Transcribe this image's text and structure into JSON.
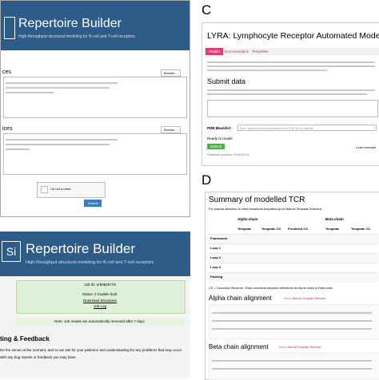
{
  "panel_labels": [
    "C",
    "D"
  ],
  "builder_form": {
    "title": "Repertoire Builder",
    "subtitle": "High-throughput structural modeling for B-cell and T-cell receptors",
    "heavy_label": "ces",
    "light_label": "ices",
    "browse": "Browse...",
    "captcha": "I'm not a robot",
    "submit": "Submit"
  },
  "builder_result": {
    "logo": "Si",
    "title": "Repertoire Builder",
    "subtitle": "High-throughput structural modeling for B-cell and T-cell receptors",
    "job_id": "Job ID: erb0825778",
    "status": "Status: 2 models built.",
    "download": "Download Structures",
    "job_log": "Job Log",
    "note": "Note: Job results are automatically removed after 7 days.",
    "section": "ting & Feedback",
    "text": "lve the server at the moment, and so we ask for your patience and understanding for any problems that may occur",
    "text2": "with any bug reports or feedback you may have."
  },
  "lyra": {
    "title": "LYRA: Lymphocyte Receptor Automated Modelling",
    "tabs": [
      "Predict",
      "Documentation",
      "Templates"
    ],
    "submit_heading": "Submit data",
    "blacklist_label": "PDB Blacklist:",
    "blacklist_placeholder": "Enter optional comma separated list of PDB IDs to blacklist",
    "ready": "Ready to model",
    "submit": "Submit",
    "load_example": "Load example",
    "updated": "Database updated: 2016-04-14"
  },
  "summary": {
    "title": "Summary of modelled TCR",
    "manual_note": "For manual selection of other framework templates go to Manual Template Selection",
    "alpha_header": "Alpha chain",
    "beta_header": "Beta chain",
    "columns": [
      "Template",
      "Template CS",
      "Predicted CS",
      "Template",
      "Template CS"
    ],
    "rows": [
      "Framework",
      "Loop 1",
      "Loop 2",
      "Loop 3",
      "Packing"
    ],
    "cs_note": "CS = Canonical Structure. Show canonical structure definitions for Alpha chain or Beta chain",
    "alpha_alignment": "Alpha chain alignment",
    "beta_alignment": "Beta chain alignment",
    "manual_link": "Go to: Manual Template Selection"
  }
}
